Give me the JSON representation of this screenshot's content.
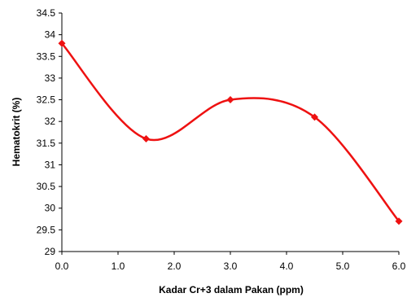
{
  "chart_data": {
    "type": "line",
    "title": "",
    "xlabel": "Kadar Cr+3 dalam Pakan (ppm)",
    "ylabel": "Hematokrit (%)",
    "xlim": [
      0,
      6
    ],
    "ylim": [
      29,
      34.5
    ],
    "x_ticks": [
      "0.0",
      "1.0",
      "2.0",
      "3.0",
      "4.0",
      "5.0",
      "6.0"
    ],
    "y_ticks": [
      "29",
      "29.5",
      "30",
      "30.5",
      "31",
      "31.5",
      "32",
      "32.5",
      "33",
      "33.5",
      "34",
      "34.5"
    ],
    "grid": false,
    "legend": "none",
    "series": [
      {
        "x": [
          0,
          1.5,
          3,
          4.5,
          6
        ],
        "y": [
          33.8,
          31.6,
          32.5,
          32.1,
          29.7
        ],
        "color": "#ee1111",
        "marker": "diamond",
        "smooth": true
      }
    ]
  }
}
